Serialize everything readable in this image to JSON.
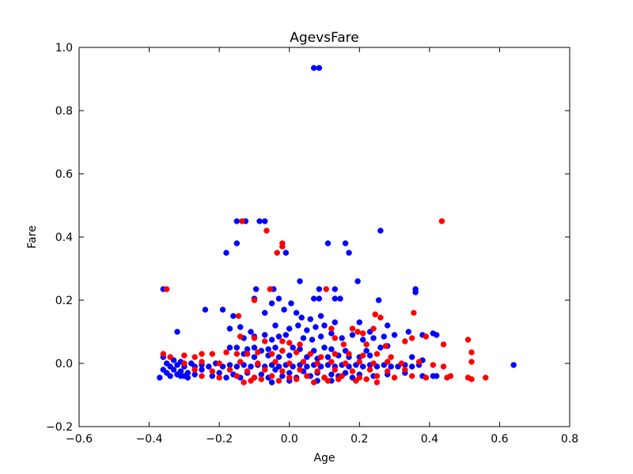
{
  "chart_data": {
    "type": "scatter",
    "title": "AgevsFare",
    "xlabel": "Age",
    "ylabel": "Fare",
    "xlim": [
      -0.6,
      0.8
    ],
    "ylim": [
      -0.2,
      1.0
    ],
    "xticks": [
      -0.6,
      -0.4,
      -0.2,
      0.0,
      0.2,
      0.4,
      0.6,
      0.8
    ],
    "xtick_labels": [
      "−0.6",
      "−0.4",
      "−0.2",
      "0.0",
      "0.2",
      "0.4",
      "0.6",
      "0.8"
    ],
    "yticks": [
      -0.2,
      0.0,
      0.2,
      0.4,
      0.6,
      0.8,
      1.0
    ],
    "ytick_labels": [
      "−0.2",
      "0.0",
      "0.2",
      "0.4",
      "0.6",
      "0.8",
      "1.0"
    ],
    "grid": false,
    "legend": "none",
    "series": [
      {
        "color": "#0000ff",
        "points": [
          [
            0.07,
            0.935
          ],
          [
            0.085,
            0.935
          ],
          [
            -0.15,
            0.45
          ],
          [
            -0.125,
            0.45
          ],
          [
            -0.085,
            0.45
          ],
          [
            -0.07,
            0.45
          ],
          [
            0.26,
            0.42
          ],
          [
            -0.15,
            0.38
          ],
          [
            0.11,
            0.38
          ],
          [
            0.16,
            0.38
          ],
          [
            -0.18,
            0.35
          ],
          [
            0.17,
            0.35
          ],
          [
            -0.01,
            0.35
          ],
          [
            0.03,
            0.26
          ],
          [
            0.195,
            0.26
          ],
          [
            -0.36,
            0.235
          ],
          [
            -0.095,
            0.235
          ],
          [
            -0.045,
            0.235
          ],
          [
            0.085,
            0.235
          ],
          [
            0.13,
            0.235
          ],
          [
            0.36,
            0.235
          ],
          [
            -0.1,
            0.205
          ],
          [
            -0.03,
            0.205
          ],
          [
            0.07,
            0.205
          ],
          [
            0.085,
            0.205
          ],
          [
            0.13,
            0.205
          ],
          [
            0.145,
            0.205
          ],
          [
            0.255,
            0.2
          ],
          [
            0.36,
            0.225
          ],
          [
            -0.24,
            0.17
          ],
          [
            -0.19,
            0.17
          ],
          [
            -0.05,
            0.19
          ],
          [
            -0.015,
            0.17
          ],
          [
            0.005,
            0.19
          ],
          [
            0.02,
            0.16
          ],
          [
            -0.16,
            0.15
          ],
          [
            -0.07,
            0.16
          ],
          [
            0.035,
            0.145
          ],
          [
            0.06,
            0.14
          ],
          [
            0.09,
            0.15
          ],
          [
            0.13,
            0.13
          ],
          [
            0.2,
            0.13
          ],
          [
            -0.32,
            0.1
          ],
          [
            -0.17,
            0.11
          ],
          [
            -0.14,
            0.115
          ],
          [
            -0.11,
            0.1
          ],
          [
            -0.04,
            0.12
          ],
          [
            0.0,
            0.11
          ],
          [
            0.025,
            0.12
          ],
          [
            0.05,
            0.105
          ],
          [
            0.075,
            0.115
          ],
          [
            0.1,
            0.12
          ],
          [
            0.12,
            0.095
          ],
          [
            0.18,
            0.09
          ],
          [
            0.21,
            0.075
          ],
          [
            0.23,
            0.1
          ],
          [
            0.27,
            0.085
          ],
          [
            0.28,
            0.12
          ],
          [
            0.34,
            0.1
          ],
          [
            0.38,
            0.09
          ],
          [
            0.41,
            0.095
          ],
          [
            0.42,
            0.09
          ],
          [
            -0.13,
            0.08
          ],
          [
            -0.1,
            0.085
          ],
          [
            -0.07,
            0.09
          ],
          [
            -0.05,
            0.075
          ],
          [
            -0.03,
            0.085
          ],
          [
            -0.01,
            0.09
          ],
          [
            0.04,
            0.08
          ],
          [
            0.065,
            0.075
          ],
          [
            0.09,
            0.085
          ],
          [
            0.15,
            0.08
          ],
          [
            0.24,
            0.08
          ],
          [
            0.3,
            0.09
          ],
          [
            -0.17,
            0.05
          ],
          [
            -0.15,
            0.05
          ],
          [
            -0.12,
            0.045
          ],
          [
            -0.1,
            0.05
          ],
          [
            -0.08,
            0.04
          ],
          [
            -0.06,
            0.045
          ],
          [
            -0.04,
            0.05
          ],
          [
            -0.02,
            0.04
          ],
          [
            0.01,
            0.05
          ],
          [
            0.03,
            0.045
          ],
          [
            0.07,
            0.04
          ],
          [
            0.1,
            0.05
          ],
          [
            0.12,
            0.045
          ],
          [
            0.16,
            0.04
          ],
          [
            0.22,
            0.04
          ],
          [
            0.26,
            0.05
          ],
          [
            0.28,
            0.055
          ],
          [
            -0.13,
            0.03
          ],
          [
            -0.1,
            0.02
          ],
          [
            -0.06,
            0.025
          ],
          [
            -0.03,
            0.02
          ],
          [
            0.0,
            0.025
          ],
          [
            0.05,
            0.02
          ],
          [
            0.08,
            0.015
          ],
          [
            0.11,
            0.02
          ],
          [
            0.14,
            0.025
          ],
          [
            0.17,
            0.02
          ],
          [
            0.2,
            0.02
          ],
          [
            0.23,
            0.025
          ],
          [
            0.35,
            0.02
          ],
          [
            0.38,
            0.01
          ],
          [
            -0.36,
            0.02
          ],
          [
            -0.35,
            0.0
          ],
          [
            -0.34,
            -0.01
          ],
          [
            -0.33,
            0.01
          ],
          [
            -0.32,
            -0.005
          ],
          [
            -0.31,
            0.005
          ],
          [
            -0.3,
            -0.01
          ],
          [
            -0.28,
            0.0
          ],
          [
            -0.27,
            -0.01
          ],
          [
            -0.25,
            -0.005
          ],
          [
            -0.23,
            -0.01
          ],
          [
            -0.21,
            0.0
          ],
          [
            -0.19,
            -0.01
          ],
          [
            -0.17,
            -0.005
          ],
          [
            -0.15,
            -0.01
          ],
          [
            -0.13,
            -0.005
          ],
          [
            -0.11,
            -0.01
          ],
          [
            -0.09,
            -0.005
          ],
          [
            -0.07,
            -0.01
          ],
          [
            -0.05,
            -0.005
          ],
          [
            -0.03,
            -0.01
          ],
          [
            -0.01,
            -0.005
          ],
          [
            0.01,
            -0.01
          ],
          [
            0.03,
            -0.005
          ],
          [
            0.05,
            -0.01
          ],
          [
            0.07,
            -0.005
          ],
          [
            0.09,
            -0.01
          ],
          [
            0.11,
            -0.005
          ],
          [
            0.13,
            -0.01
          ],
          [
            0.15,
            -0.005
          ],
          [
            0.17,
            -0.01
          ],
          [
            0.19,
            -0.005
          ],
          [
            0.21,
            -0.01
          ],
          [
            0.23,
            -0.005
          ],
          [
            0.25,
            -0.01
          ],
          [
            0.27,
            -0.005
          ],
          [
            0.29,
            -0.01
          ],
          [
            0.31,
            -0.01
          ],
          [
            0.33,
            -0.005
          ],
          [
            0.35,
            -0.01
          ],
          [
            0.37,
            -0.005
          ],
          [
            -0.36,
            -0.02
          ],
          [
            -0.35,
            -0.03
          ],
          [
            -0.34,
            -0.04
          ],
          [
            -0.33,
            -0.02
          ],
          [
            -0.32,
            -0.035
          ],
          [
            -0.31,
            -0.025
          ],
          [
            -0.3,
            -0.04
          ],
          [
            -0.29,
            -0.03
          ],
          [
            -0.27,
            -0.035
          ],
          [
            -0.25,
            -0.02
          ],
          [
            -0.22,
            -0.04
          ],
          [
            -0.2,
            -0.03
          ],
          [
            -0.18,
            -0.045
          ],
          [
            -0.16,
            -0.035
          ],
          [
            -0.14,
            -0.045
          ],
          [
            -0.12,
            -0.03
          ],
          [
            -0.1,
            -0.045
          ],
          [
            -0.08,
            -0.035
          ],
          [
            -0.06,
            -0.045
          ],
          [
            -0.04,
            -0.02
          ],
          [
            -0.02,
            -0.04
          ],
          [
            0.0,
            -0.03
          ],
          [
            0.02,
            -0.045
          ],
          [
            0.04,
            -0.025
          ],
          [
            0.06,
            -0.04
          ],
          [
            0.08,
            -0.03
          ],
          [
            0.1,
            -0.045
          ],
          [
            0.12,
            -0.035
          ],
          [
            0.14,
            -0.04
          ],
          [
            0.16,
            -0.03
          ],
          [
            0.18,
            -0.045
          ],
          [
            0.2,
            -0.035
          ],
          [
            0.24,
            -0.04
          ],
          [
            0.28,
            -0.035
          ],
          [
            0.33,
            -0.03
          ],
          [
            0.38,
            -0.04
          ],
          [
            0.41,
            -0.04
          ],
          [
            0.42,
            -0.04
          ],
          [
            -0.37,
            -0.045
          ],
          [
            -0.31,
            -0.04
          ],
          [
            -0.29,
            -0.045
          ],
          [
            -0.05,
            -0.06
          ],
          [
            0.0,
            -0.055
          ],
          [
            0.08,
            -0.055
          ],
          [
            0.12,
            -0.055
          ],
          [
            0.64,
            -0.005
          ]
        ]
      },
      {
        "color": "#ff0000",
        "points": [
          [
            -0.135,
            0.45
          ],
          [
            0.435,
            0.45
          ],
          [
            -0.065,
            0.42
          ],
          [
            -0.02,
            0.38
          ],
          [
            -0.02,
            0.37
          ],
          [
            -0.035,
            0.35
          ],
          [
            -0.35,
            0.235
          ],
          [
            -0.055,
            0.235
          ],
          [
            0.105,
            0.235
          ],
          [
            -0.1,
            0.2
          ],
          [
            0.355,
            0.16
          ],
          [
            -0.145,
            0.15
          ],
          [
            0.245,
            0.155
          ],
          [
            0.26,
            0.145
          ],
          [
            0.12,
            0.11
          ],
          [
            0.18,
            0.11
          ],
          [
            0.195,
            0.1
          ],
          [
            0.21,
            0.095
          ],
          [
            0.24,
            0.11
          ],
          [
            0.33,
            0.07
          ],
          [
            0.35,
            0.08
          ],
          [
            0.39,
            0.085
          ],
          [
            0.51,
            0.075
          ],
          [
            -0.14,
            0.085
          ],
          [
            -0.1,
            0.08
          ],
          [
            0.13,
            0.08
          ],
          [
            -0.07,
            0.07
          ],
          [
            -0.02,
            0.07
          ],
          [
            0.0,
            0.065
          ],
          [
            0.03,
            0.06
          ],
          [
            0.155,
            0.06
          ],
          [
            0.22,
            0.06
          ],
          [
            0.275,
            0.055
          ],
          [
            0.44,
            0.06
          ],
          [
            -0.36,
            0.03
          ],
          [
            -0.34,
            0.02
          ],
          [
            -0.3,
            0.025
          ],
          [
            -0.27,
            0.02
          ],
          [
            -0.25,
            0.03
          ],
          [
            -0.22,
            0.03
          ],
          [
            -0.18,
            0.035
          ],
          [
            -0.15,
            0.03
          ],
          [
            -0.12,
            0.03
          ],
          [
            -0.09,
            0.035
          ],
          [
            -0.05,
            0.03
          ],
          [
            -0.02,
            0.04
          ],
          [
            0.02,
            0.035
          ],
          [
            0.06,
            0.03
          ],
          [
            0.09,
            0.02
          ],
          [
            0.13,
            0.03
          ],
          [
            0.17,
            0.03
          ],
          [
            0.21,
            0.025
          ],
          [
            0.25,
            0.03
          ],
          [
            0.29,
            0.02
          ],
          [
            0.52,
            0.035
          ],
          [
            -0.3,
            0.0
          ],
          [
            -0.25,
            0.005
          ],
          [
            -0.2,
            0.0
          ],
          [
            -0.14,
            0.005
          ],
          [
            -0.09,
            0.0
          ],
          [
            -0.04,
            0.005
          ],
          [
            0.0,
            0.0
          ],
          [
            0.04,
            0.005
          ],
          [
            0.08,
            0.0
          ],
          [
            0.12,
            0.005
          ],
          [
            0.16,
            0.0
          ],
          [
            0.2,
            0.005
          ],
          [
            0.24,
            0.0
          ],
          [
            0.28,
            0.005
          ],
          [
            0.32,
            0.0
          ],
          [
            0.37,
            0.005
          ],
          [
            0.41,
            -0.005
          ],
          [
            0.44,
            -0.01
          ],
          [
            0.52,
            0.005
          ],
          [
            -0.27,
            -0.02
          ],
          [
            -0.22,
            -0.025
          ],
          [
            -0.17,
            -0.02
          ],
          [
            -0.12,
            -0.025
          ],
          [
            -0.07,
            -0.02
          ],
          [
            -0.02,
            -0.025
          ],
          [
            0.03,
            -0.02
          ],
          [
            0.08,
            -0.025
          ],
          [
            0.13,
            -0.02
          ],
          [
            0.18,
            -0.025
          ],
          [
            0.23,
            -0.02
          ],
          [
            0.28,
            -0.025
          ],
          [
            0.33,
            -0.02
          ],
          [
            -0.25,
            -0.04
          ],
          [
            -0.2,
            -0.045
          ],
          [
            -0.15,
            -0.04
          ],
          [
            -0.1,
            -0.045
          ],
          [
            -0.05,
            -0.04
          ],
          [
            0.0,
            -0.045
          ],
          [
            0.05,
            -0.04
          ],
          [
            0.1,
            -0.045
          ],
          [
            0.15,
            -0.04
          ],
          [
            0.2,
            -0.045
          ],
          [
            0.25,
            -0.04
          ],
          [
            0.3,
            -0.045
          ],
          [
            0.35,
            -0.04
          ],
          [
            0.39,
            -0.045
          ],
          [
            0.45,
            -0.045
          ],
          [
            0.46,
            -0.04
          ],
          [
            0.51,
            -0.045
          ],
          [
            0.52,
            -0.05
          ],
          [
            0.56,
            -0.045
          ],
          [
            -0.13,
            -0.06
          ],
          [
            -0.11,
            -0.055
          ],
          [
            -0.08,
            -0.05
          ],
          [
            -0.03,
            -0.055
          ],
          [
            0.02,
            -0.05
          ],
          [
            0.07,
            -0.06
          ],
          [
            0.11,
            -0.055
          ],
          [
            0.14,
            -0.05
          ],
          [
            0.19,
            -0.055
          ],
          [
            0.22,
            -0.05
          ],
          [
            0.25,
            -0.06
          ]
        ]
      }
    ]
  }
}
